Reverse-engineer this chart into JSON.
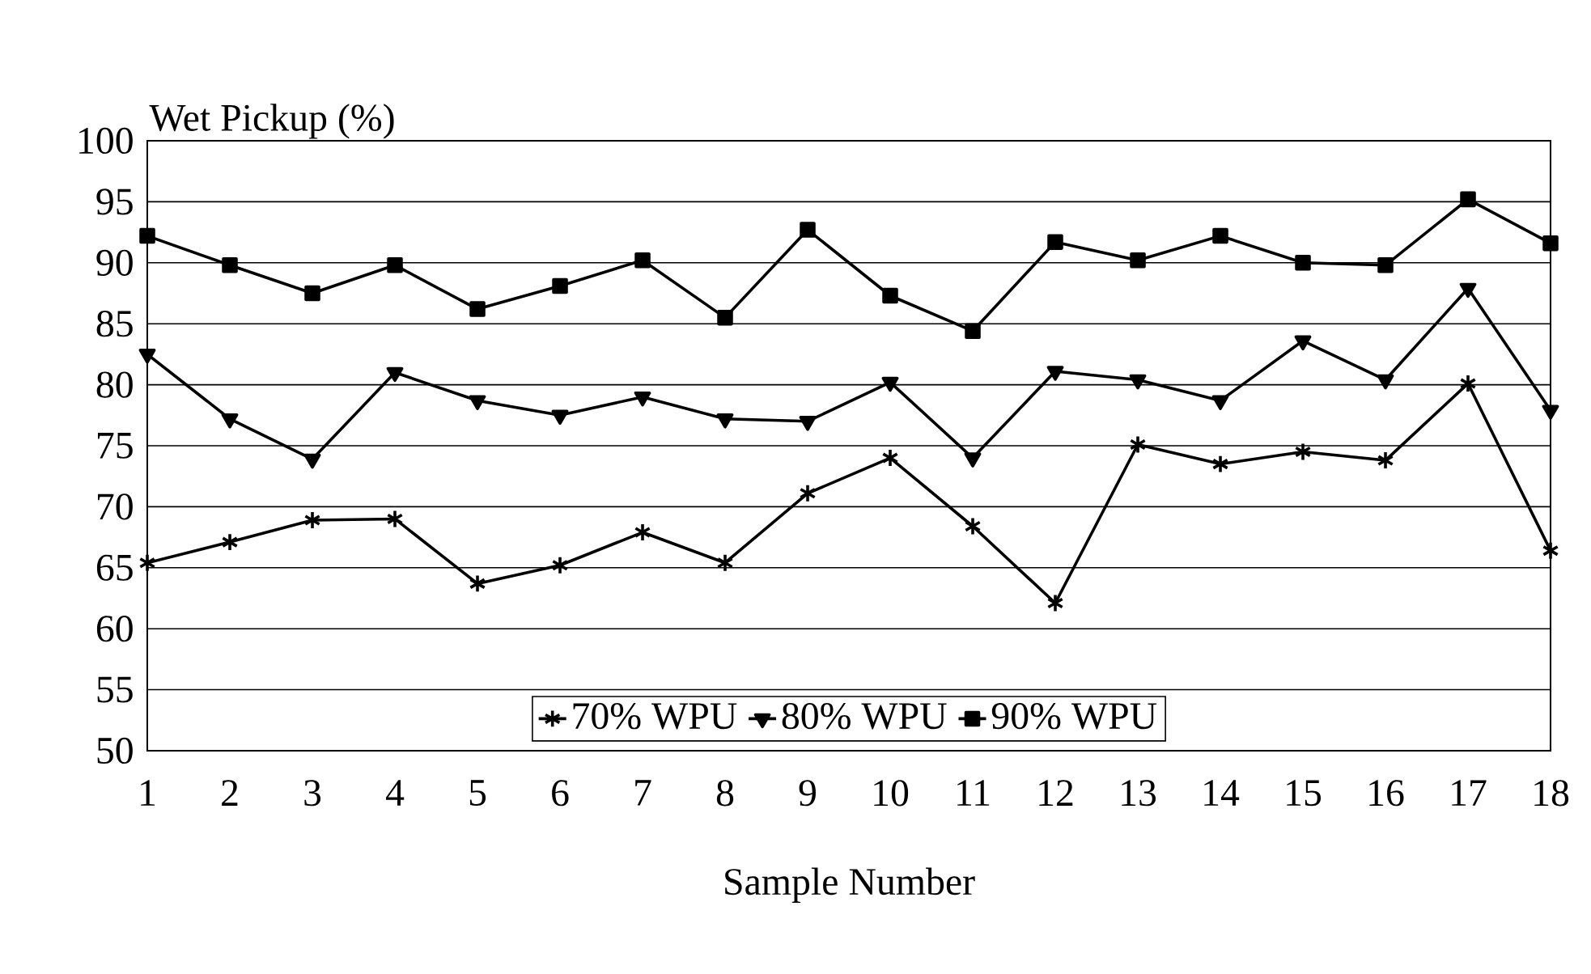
{
  "chart_data": {
    "type": "line",
    "xlabel": "Sample Number",
    "ylabel": "Wet Pickup (%)",
    "categories": [
      "1",
      "2",
      "3",
      "4",
      "5",
      "6",
      "7",
      "8",
      "9",
      "10",
      "11",
      "12",
      "13",
      "14",
      "15",
      "16",
      "17",
      "18"
    ],
    "ylim": [
      50,
      100
    ],
    "yticks": [
      50,
      55,
      60,
      65,
      70,
      75,
      80,
      85,
      90,
      95,
      100
    ],
    "grid": "y",
    "legend": "bottom",
    "line_style": "solid",
    "series": [
      {
        "name": "70% WPU",
        "color": "#000000",
        "marker": "cross",
        "values": [
          65.4,
          67.1,
          68.9,
          69.0,
          63.7,
          65.2,
          67.9,
          65.4,
          71.1,
          74.0,
          68.4,
          62.1,
          75.1,
          73.5,
          74.5,
          73.8,
          80.1,
          66.4
        ]
      },
      {
        "name": "80% WPU",
        "color": "#000000",
        "marker": "triangle",
        "values": [
          82.5,
          77.2,
          73.9,
          81.0,
          78.7,
          77.5,
          79.0,
          77.2,
          77.0,
          80.2,
          74.0,
          81.1,
          80.4,
          78.7,
          83.6,
          80.4,
          87.9,
          77.9
        ]
      },
      {
        "name": "90% WPU",
        "color": "#000000",
        "marker": "square",
        "values": [
          92.2,
          89.8,
          87.5,
          89.8,
          86.2,
          88.1,
          90.2,
          85.5,
          92.7,
          87.3,
          84.4,
          91.7,
          90.2,
          92.2,
          90.0,
          89.8,
          95.2,
          91.6
        ]
      }
    ]
  }
}
